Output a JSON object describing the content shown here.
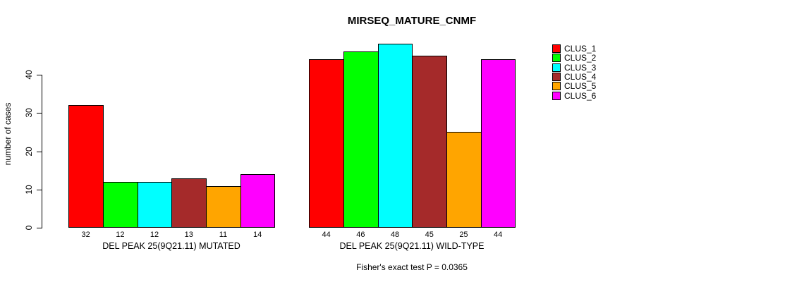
{
  "chart_data": {
    "type": "bar",
    "title": "MIRSEQ_MATURE_CNMF",
    "ylabel": "number of cases",
    "xlabel": "",
    "footer": "Fisher's exact test P = 0.0365",
    "y_ticks": [
      0,
      10,
      20,
      30,
      40
    ],
    "ylim": [
      0,
      49
    ],
    "grid": false,
    "legend_position": "top-right-inside",
    "legend": [
      {
        "label": "CLUS_1",
        "color": "#ff0000"
      },
      {
        "label": "CLUS_2",
        "color": "#00ff00"
      },
      {
        "label": "CLUS_3",
        "color": "#00ffff"
      },
      {
        "label": "CLUS_4",
        "color": "#a52a2a"
      },
      {
        "label": "CLUS_5",
        "color": "#ffa500"
      },
      {
        "label": "CLUS_6",
        "color": "#ff00ff"
      }
    ],
    "groups": [
      {
        "label": "DEL PEAK 25(9Q21.11) MUTATED",
        "values": [
          32,
          12,
          12,
          13,
          11,
          14
        ]
      },
      {
        "label": "DEL PEAK 25(9Q21.11) WILD-TYPE",
        "values": [
          44,
          46,
          48,
          45,
          25,
          44
        ]
      }
    ]
  }
}
